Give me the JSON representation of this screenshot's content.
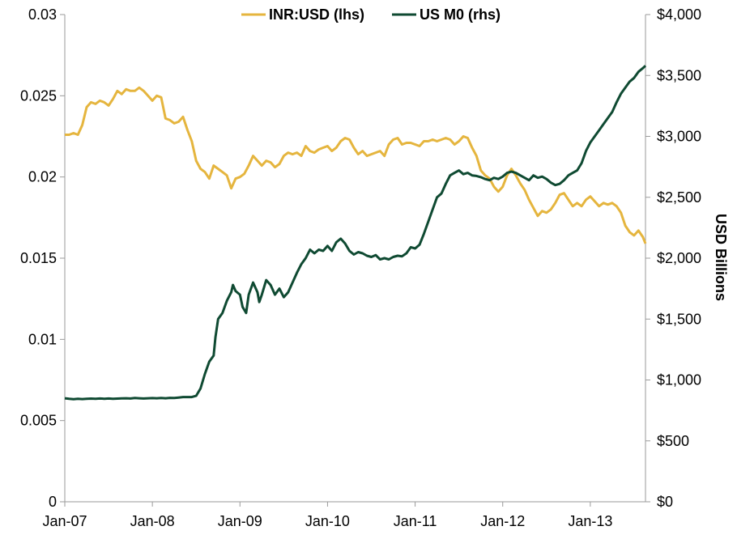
{
  "chart_data": {
    "type": "line",
    "title": "",
    "xlabel": "",
    "ylabel_left": "",
    "ylabel_right": "USD Billions",
    "x_tick_labels": [
      "Jan-07",
      "Jan-08",
      "Jan-09",
      "Jan-10",
      "Jan-11",
      "Jan-12",
      "Jan-13"
    ],
    "x_range": [
      2007.0,
      2013.63
    ],
    "y_left": {
      "range": [
        0,
        0.03
      ],
      "tick_values": [
        0,
        0.005,
        0.01,
        0.015,
        0.02,
        0.025,
        0.03
      ],
      "tick_labels": [
        "0",
        "0.005",
        "0.01",
        "0.015",
        "0.02",
        "0.025",
        "0.03"
      ]
    },
    "y_right": {
      "range": [
        0,
        4000
      ],
      "tick_values": [
        0,
        500,
        1000,
        1500,
        2000,
        2500,
        3000,
        3500,
        4000
      ],
      "tick_labels": [
        "$0",
        "$500",
        "$1,000",
        "$1,500",
        "$2,000",
        "$2,500",
        "$3,000",
        "$3,500",
        "$4,000"
      ]
    },
    "grid": false,
    "legend_position": "top-center",
    "series": [
      {
        "name": "INR:USD (lhs)",
        "axis": "left",
        "color": "#E5B53E",
        "points": [
          [
            2007.0,
            0.0226
          ],
          [
            2007.05,
            0.0226
          ],
          [
            2007.1,
            0.0227
          ],
          [
            2007.15,
            0.0226
          ],
          [
            2007.2,
            0.0232
          ],
          [
            2007.25,
            0.0243
          ],
          [
            2007.3,
            0.0246
          ],
          [
            2007.35,
            0.0245
          ],
          [
            2007.4,
            0.0247
          ],
          [
            2007.45,
            0.0246
          ],
          [
            2007.5,
            0.0244
          ],
          [
            2007.55,
            0.0248
          ],
          [
            2007.6,
            0.0253
          ],
          [
            2007.65,
            0.0251
          ],
          [
            2007.7,
            0.0254
          ],
          [
            2007.75,
            0.0253
          ],
          [
            2007.8,
            0.0253
          ],
          [
            2007.85,
            0.0255
          ],
          [
            2007.9,
            0.0253
          ],
          [
            2007.95,
            0.025
          ],
          [
            2008.0,
            0.0247
          ],
          [
            2008.05,
            0.025
          ],
          [
            2008.1,
            0.0249
          ],
          [
            2008.15,
            0.0236
          ],
          [
            2008.2,
            0.0235
          ],
          [
            2008.25,
            0.0233
          ],
          [
            2008.3,
            0.0234
          ],
          [
            2008.35,
            0.0237
          ],
          [
            2008.4,
            0.0229
          ],
          [
            2008.45,
            0.0222
          ],
          [
            2008.5,
            0.021
          ],
          [
            2008.55,
            0.0205
          ],
          [
            2008.6,
            0.0203
          ],
          [
            2008.65,
            0.0199
          ],
          [
            2008.7,
            0.0207
          ],
          [
            2008.75,
            0.0205
          ],
          [
            2008.8,
            0.0203
          ],
          [
            2008.85,
            0.0201
          ],
          [
            2008.9,
            0.0193
          ],
          [
            2008.95,
            0.0199
          ],
          [
            2009.0,
            0.02
          ],
          [
            2009.05,
            0.0202
          ],
          [
            2009.1,
            0.0207
          ],
          [
            2009.15,
            0.0213
          ],
          [
            2009.2,
            0.021
          ],
          [
            2009.25,
            0.0207
          ],
          [
            2009.3,
            0.021
          ],
          [
            2009.35,
            0.0209
          ],
          [
            2009.4,
            0.0206
          ],
          [
            2009.45,
            0.0208
          ],
          [
            2009.5,
            0.0213
          ],
          [
            2009.55,
            0.0215
          ],
          [
            2009.6,
            0.0214
          ],
          [
            2009.65,
            0.0215
          ],
          [
            2009.7,
            0.0213
          ],
          [
            2009.75,
            0.0219
          ],
          [
            2009.8,
            0.0216
          ],
          [
            2009.85,
            0.0215
          ],
          [
            2009.9,
            0.0217
          ],
          [
            2009.95,
            0.0218
          ],
          [
            2010.0,
            0.0219
          ],
          [
            2010.05,
            0.0216
          ],
          [
            2010.1,
            0.0218
          ],
          [
            2010.15,
            0.0222
          ],
          [
            2010.2,
            0.0224
          ],
          [
            2010.25,
            0.0223
          ],
          [
            2010.3,
            0.0218
          ],
          [
            2010.35,
            0.0214
          ],
          [
            2010.4,
            0.0216
          ],
          [
            2010.45,
            0.0213
          ],
          [
            2010.5,
            0.0214
          ],
          [
            2010.55,
            0.0215
          ],
          [
            2010.6,
            0.0216
          ],
          [
            2010.65,
            0.0213
          ],
          [
            2010.7,
            0.022
          ],
          [
            2010.75,
            0.0223
          ],
          [
            2010.8,
            0.0224
          ],
          [
            2010.85,
            0.022
          ],
          [
            2010.9,
            0.0221
          ],
          [
            2010.95,
            0.0221
          ],
          [
            2011.0,
            0.022
          ],
          [
            2011.05,
            0.0219
          ],
          [
            2011.1,
            0.0222
          ],
          [
            2011.15,
            0.0222
          ],
          [
            2011.2,
            0.0223
          ],
          [
            2011.25,
            0.0222
          ],
          [
            2011.3,
            0.0223
          ],
          [
            2011.35,
            0.0224
          ],
          [
            2011.4,
            0.0223
          ],
          [
            2011.45,
            0.022
          ],
          [
            2011.5,
            0.0222
          ],
          [
            2011.55,
            0.0225
          ],
          [
            2011.6,
            0.0224
          ],
          [
            2011.65,
            0.0218
          ],
          [
            2011.7,
            0.0213
          ],
          [
            2011.75,
            0.0204
          ],
          [
            2011.8,
            0.0201
          ],
          [
            2011.85,
            0.0199
          ],
          [
            2011.9,
            0.0194
          ],
          [
            2011.95,
            0.0191
          ],
          [
            2012.0,
            0.0194
          ],
          [
            2012.05,
            0.0201
          ],
          [
            2012.1,
            0.0205
          ],
          [
            2012.15,
            0.0201
          ],
          [
            2012.2,
            0.0196
          ],
          [
            2012.25,
            0.0192
          ],
          [
            2012.3,
            0.0186
          ],
          [
            2012.35,
            0.0181
          ],
          [
            2012.4,
            0.0176
          ],
          [
            2012.45,
            0.0179
          ],
          [
            2012.5,
            0.0178
          ],
          [
            2012.55,
            0.018
          ],
          [
            2012.6,
            0.0184
          ],
          [
            2012.65,
            0.0189
          ],
          [
            2012.7,
            0.019
          ],
          [
            2012.75,
            0.0186
          ],
          [
            2012.8,
            0.0182
          ],
          [
            2012.85,
            0.0184
          ],
          [
            2012.9,
            0.0182
          ],
          [
            2012.95,
            0.0186
          ],
          [
            2013.0,
            0.0188
          ],
          [
            2013.05,
            0.0185
          ],
          [
            2013.1,
            0.0182
          ],
          [
            2013.15,
            0.0184
          ],
          [
            2013.2,
            0.0183
          ],
          [
            2013.25,
            0.0184
          ],
          [
            2013.3,
            0.0182
          ],
          [
            2013.35,
            0.0178
          ],
          [
            2013.4,
            0.017
          ],
          [
            2013.45,
            0.0166
          ],
          [
            2013.5,
            0.0164
          ],
          [
            2013.55,
            0.0167
          ],
          [
            2013.6,
            0.0163
          ],
          [
            2013.63,
            0.0159
          ]
        ]
      },
      {
        "name": "US M0 (rhs)",
        "axis": "right",
        "color": "#0F4A32",
        "points": [
          [
            2007.0,
            850
          ],
          [
            2007.05,
            845
          ],
          [
            2007.1,
            842
          ],
          [
            2007.15,
            845
          ],
          [
            2007.2,
            843
          ],
          [
            2007.25,
            846
          ],
          [
            2007.3,
            847
          ],
          [
            2007.35,
            845
          ],
          [
            2007.4,
            848
          ],
          [
            2007.45,
            846
          ],
          [
            2007.5,
            848
          ],
          [
            2007.55,
            845
          ],
          [
            2007.6,
            847
          ],
          [
            2007.65,
            849
          ],
          [
            2007.7,
            850
          ],
          [
            2007.75,
            848
          ],
          [
            2007.8,
            852
          ],
          [
            2007.85,
            850
          ],
          [
            2007.9,
            848
          ],
          [
            2007.95,
            850
          ],
          [
            2008.0,
            851
          ],
          [
            2008.05,
            850
          ],
          [
            2008.1,
            852
          ],
          [
            2008.15,
            850
          ],
          [
            2008.2,
            853
          ],
          [
            2008.25,
            852
          ],
          [
            2008.3,
            856
          ],
          [
            2008.35,
            860
          ],
          [
            2008.4,
            860
          ],
          [
            2008.45,
            860
          ],
          [
            2008.5,
            870
          ],
          [
            2008.55,
            930
          ],
          [
            2008.6,
            1050
          ],
          [
            2008.65,
            1150
          ],
          [
            2008.7,
            1200
          ],
          [
            2008.72,
            1350
          ],
          [
            2008.75,
            1500
          ],
          [
            2008.8,
            1550
          ],
          [
            2008.85,
            1650
          ],
          [
            2008.9,
            1720
          ],
          [
            2008.92,
            1780
          ],
          [
            2008.95,
            1730
          ],
          [
            2009.0,
            1700
          ],
          [
            2009.03,
            1600
          ],
          [
            2009.07,
            1550
          ],
          [
            2009.1,
            1700
          ],
          [
            2009.15,
            1800
          ],
          [
            2009.2,
            1720
          ],
          [
            2009.22,
            1640
          ],
          [
            2009.25,
            1700
          ],
          [
            2009.3,
            1820
          ],
          [
            2009.35,
            1780
          ],
          [
            2009.4,
            1700
          ],
          [
            2009.45,
            1750
          ],
          [
            2009.5,
            1680
          ],
          [
            2009.55,
            1720
          ],
          [
            2009.6,
            1800
          ],
          [
            2009.65,
            1880
          ],
          [
            2009.7,
            1950
          ],
          [
            2009.75,
            2000
          ],
          [
            2009.8,
            2070
          ],
          [
            2009.85,
            2040
          ],
          [
            2009.9,
            2070
          ],
          [
            2009.95,
            2060
          ],
          [
            2010.0,
            2100
          ],
          [
            2010.05,
            2060
          ],
          [
            2010.1,
            2130
          ],
          [
            2010.15,
            2160
          ],
          [
            2010.2,
            2120
          ],
          [
            2010.25,
            2060
          ],
          [
            2010.3,
            2030
          ],
          [
            2010.35,
            2050
          ],
          [
            2010.4,
            2040
          ],
          [
            2010.45,
            2020
          ],
          [
            2010.5,
            2010
          ],
          [
            2010.55,
            2025
          ],
          [
            2010.6,
            1990
          ],
          [
            2010.65,
            2000
          ],
          [
            2010.7,
            1990
          ],
          [
            2010.75,
            2010
          ],
          [
            2010.8,
            2020
          ],
          [
            2010.85,
            2015
          ],
          [
            2010.9,
            2040
          ],
          [
            2010.95,
            2090
          ],
          [
            2011.0,
            2080
          ],
          [
            2011.05,
            2110
          ],
          [
            2011.1,
            2200
          ],
          [
            2011.15,
            2300
          ],
          [
            2011.2,
            2400
          ],
          [
            2011.25,
            2500
          ],
          [
            2011.3,
            2530
          ],
          [
            2011.35,
            2610
          ],
          [
            2011.4,
            2680
          ],
          [
            2011.45,
            2700
          ],
          [
            2011.5,
            2720
          ],
          [
            2011.55,
            2690
          ],
          [
            2011.6,
            2700
          ],
          [
            2011.65,
            2680
          ],
          [
            2011.7,
            2675
          ],
          [
            2011.75,
            2665
          ],
          [
            2011.8,
            2650
          ],
          [
            2011.85,
            2640
          ],
          [
            2011.9,
            2660
          ],
          [
            2011.95,
            2650
          ],
          [
            2012.0,
            2670
          ],
          [
            2012.05,
            2700
          ],
          [
            2012.1,
            2710
          ],
          [
            2012.15,
            2700
          ],
          [
            2012.2,
            2680
          ],
          [
            2012.25,
            2660
          ],
          [
            2012.3,
            2640
          ],
          [
            2012.35,
            2680
          ],
          [
            2012.4,
            2660
          ],
          [
            2012.45,
            2670
          ],
          [
            2012.5,
            2650
          ],
          [
            2012.55,
            2620
          ],
          [
            2012.6,
            2600
          ],
          [
            2012.65,
            2610
          ],
          [
            2012.7,
            2640
          ],
          [
            2012.75,
            2680
          ],
          [
            2012.8,
            2700
          ],
          [
            2012.85,
            2720
          ],
          [
            2012.9,
            2780
          ],
          [
            2012.95,
            2880
          ],
          [
            2013.0,
            2950
          ],
          [
            2013.05,
            3000
          ],
          [
            2013.1,
            3050
          ],
          [
            2013.15,
            3100
          ],
          [
            2013.2,
            3150
          ],
          [
            2013.25,
            3200
          ],
          [
            2013.3,
            3280
          ],
          [
            2013.35,
            3350
          ],
          [
            2013.4,
            3400
          ],
          [
            2013.45,
            3450
          ],
          [
            2013.5,
            3480
          ],
          [
            2013.55,
            3530
          ],
          [
            2013.6,
            3560
          ],
          [
            2013.63,
            3580
          ]
        ]
      }
    ]
  }
}
